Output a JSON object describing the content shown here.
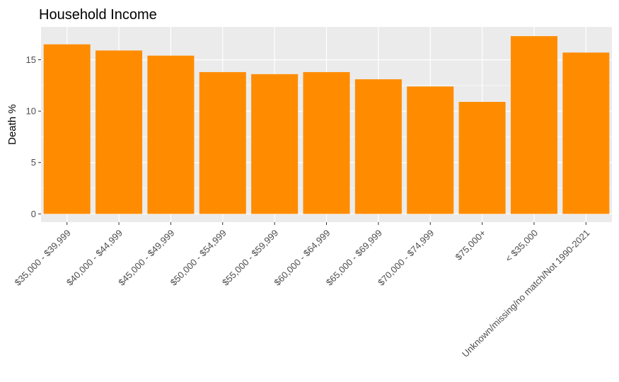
{
  "chart_data": {
    "type": "bar",
    "title": "Household Income",
    "xlabel": "",
    "ylabel": "Death %",
    "categories": [
      "$35,000 - $39,999",
      "$40,000 - $44,999",
      "$45,000 - $49,999",
      "$50,000 - $54,999",
      "$55,000 - $59,999",
      "$60,000 - $64,999",
      "$65,000 - $69,999",
      "$70,000 - $74,999",
      "$75,000+",
      "< $35,000",
      "Unknown/missing/no match/Not 1990-2021"
    ],
    "values": [
      16.5,
      15.9,
      15.4,
      13.8,
      13.6,
      13.8,
      13.1,
      12.4,
      10.9,
      17.3,
      15.7
    ],
    "ylim": [
      -0.8,
      18.2
    ],
    "yticks": [
      0,
      5,
      10,
      15
    ],
    "bar_color": "#FF8C00",
    "panel_color": "#EBEBEB",
    "grid": true,
    "legend": "none"
  }
}
